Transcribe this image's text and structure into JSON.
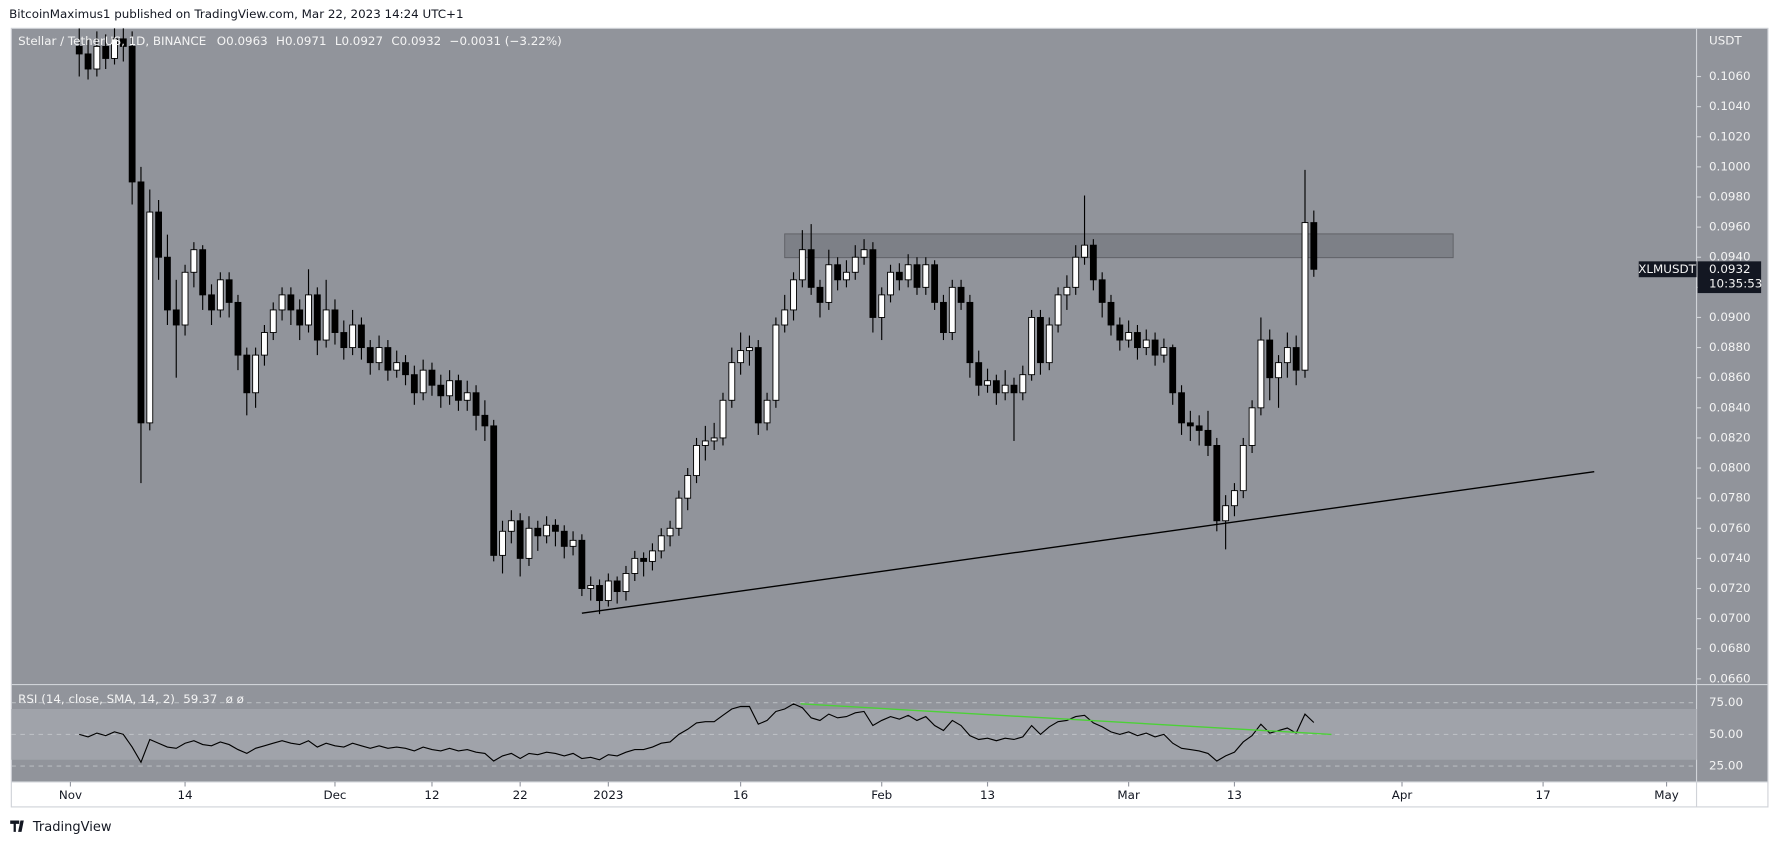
{
  "header": {
    "text": "BitcoinMaximus1 published on TradingView.com, Mar 22, 2023 14:24 UTC+1"
  },
  "footer": {
    "brand": "TradingView"
  },
  "chart_data": {
    "type": "candlestick",
    "symbol_title": "Stellar / TetherUS, 1D, BINANCE",
    "ohlc_labels": [
      "O",
      "H",
      "L",
      "C"
    ],
    "change_label": "−0.0031 (−3.22%)",
    "currency": "USDT",
    "ticker": "XLMUSDT",
    "countdown": "10:35:53",
    "colors": {
      "up": "#ffffff",
      "down": "#000000",
      "background": "#91949b"
    },
    "ohlc": [
      [
        0.108,
        0.1092,
        0.106,
        0.1075
      ],
      [
        0.1075,
        0.1085,
        0.1058,
        0.1065
      ],
      [
        0.1065,
        0.109,
        0.106,
        0.108
      ],
      [
        0.108,
        0.1088,
        0.1065,
        0.1072
      ],
      [
        0.1072,
        0.1095,
        0.1068,
        0.1085
      ],
      [
        0.1085,
        0.11,
        0.107,
        0.108
      ],
      [
        0.108,
        0.109,
        0.0975,
        0.099
      ],
      [
        0.099,
        0.1,
        0.079,
        0.083
      ],
      [
        0.083,
        0.0985,
        0.0825,
        0.097
      ],
      [
        0.097,
        0.0978,
        0.0925,
        0.094
      ],
      [
        0.094,
        0.0955,
        0.0895,
        0.0905
      ],
      [
        0.0905,
        0.0925,
        0.086,
        0.0895
      ],
      [
        0.0895,
        0.0935,
        0.0888,
        0.093
      ],
      [
        0.093,
        0.095,
        0.092,
        0.0945
      ],
      [
        0.0945,
        0.0948,
        0.0905,
        0.0915
      ],
      [
        0.0915,
        0.0922,
        0.0895,
        0.0905
      ],
      [
        0.0905,
        0.093,
        0.09,
        0.0925
      ],
      [
        0.0925,
        0.093,
        0.09,
        0.091
      ],
      [
        0.091,
        0.0915,
        0.0865,
        0.0875
      ],
      [
        0.0875,
        0.088,
        0.0835,
        0.085
      ],
      [
        0.085,
        0.088,
        0.084,
        0.0875
      ],
      [
        0.0875,
        0.0895,
        0.0868,
        0.089
      ],
      [
        0.089,
        0.091,
        0.0885,
        0.0905
      ],
      [
        0.0905,
        0.092,
        0.0898,
        0.0915
      ],
      [
        0.0915,
        0.092,
        0.0895,
        0.0905
      ],
      [
        0.0905,
        0.0912,
        0.0885,
        0.0895
      ],
      [
        0.0895,
        0.0932,
        0.089,
        0.0915
      ],
      [
        0.0915,
        0.092,
        0.0875,
        0.0885
      ],
      [
        0.0885,
        0.0925,
        0.088,
        0.0905
      ],
      [
        0.0905,
        0.0912,
        0.0882,
        0.089
      ],
      [
        0.089,
        0.0898,
        0.0872,
        0.088
      ],
      [
        0.088,
        0.0905,
        0.0875,
        0.0895
      ],
      [
        0.0895,
        0.09,
        0.0872,
        0.088
      ],
      [
        0.088,
        0.0885,
        0.0862,
        0.087
      ],
      [
        0.087,
        0.0888,
        0.0865,
        0.088
      ],
      [
        0.088,
        0.0885,
        0.0858,
        0.0865
      ],
      [
        0.0865,
        0.0878,
        0.086,
        0.087
      ],
      [
        0.087,
        0.0875,
        0.0855,
        0.0862
      ],
      [
        0.0862,
        0.0868,
        0.0842,
        0.085
      ],
      [
        0.085,
        0.0872,
        0.0845,
        0.0865
      ],
      [
        0.0865,
        0.087,
        0.0848,
        0.0855
      ],
      [
        0.0855,
        0.0862,
        0.084,
        0.0848
      ],
      [
        0.0848,
        0.0865,
        0.0842,
        0.0858
      ],
      [
        0.0858,
        0.0862,
        0.0838,
        0.0845
      ],
      [
        0.0845,
        0.0858,
        0.0838,
        0.085
      ],
      [
        0.085,
        0.0855,
        0.0825,
        0.0835
      ],
      [
        0.0835,
        0.0845,
        0.0818,
        0.0828
      ],
      [
        0.0828,
        0.0832,
        0.0738,
        0.0742
      ],
      [
        0.0742,
        0.0765,
        0.073,
        0.0758
      ],
      [
        0.0758,
        0.0772,
        0.075,
        0.0765
      ],
      [
        0.0765,
        0.077,
        0.0728,
        0.074
      ],
      [
        0.074,
        0.0768,
        0.0735,
        0.076
      ],
      [
        0.076,
        0.0765,
        0.0745,
        0.0755
      ],
      [
        0.0755,
        0.0768,
        0.075,
        0.0762
      ],
      [
        0.0762,
        0.0766,
        0.0748,
        0.0758
      ],
      [
        0.0758,
        0.0762,
        0.074,
        0.0748
      ],
      [
        0.0748,
        0.0758,
        0.0742,
        0.0752
      ],
      [
        0.0752,
        0.0756,
        0.0715,
        0.072
      ],
      [
        0.072,
        0.0728,
        0.0712,
        0.0722
      ],
      [
        0.0722,
        0.0726,
        0.0703,
        0.0712
      ],
      [
        0.0712,
        0.073,
        0.0708,
        0.0725
      ],
      [
        0.0725,
        0.0728,
        0.071,
        0.0718
      ],
      [
        0.0718,
        0.0735,
        0.0712,
        0.073
      ],
      [
        0.073,
        0.0745,
        0.0725,
        0.074
      ],
      [
        0.074,
        0.0744,
        0.0728,
        0.0738
      ],
      [
        0.0738,
        0.075,
        0.0732,
        0.0745
      ],
      [
        0.0745,
        0.076,
        0.074,
        0.0755
      ],
      [
        0.0755,
        0.0765,
        0.0748,
        0.076
      ],
      [
        0.076,
        0.0785,
        0.0755,
        0.078
      ],
      [
        0.078,
        0.08,
        0.0772,
        0.0795
      ],
      [
        0.0795,
        0.082,
        0.079,
        0.0815
      ],
      [
        0.0815,
        0.0828,
        0.0805,
        0.0818
      ],
      [
        0.0818,
        0.083,
        0.0812,
        0.082
      ],
      [
        0.082,
        0.085,
        0.0815,
        0.0845
      ],
      [
        0.0845,
        0.088,
        0.084,
        0.087
      ],
      [
        0.087,
        0.089,
        0.0862,
        0.0878
      ],
      [
        0.0878,
        0.0888,
        0.0868,
        0.088
      ],
      [
        0.088,
        0.0885,
        0.0822,
        0.083
      ],
      [
        0.083,
        0.085,
        0.0825,
        0.0845
      ],
      [
        0.0845,
        0.09,
        0.084,
        0.0895
      ],
      [
        0.0895,
        0.0915,
        0.089,
        0.0905
      ],
      [
        0.0905,
        0.093,
        0.0898,
        0.0925
      ],
      [
        0.0925,
        0.0958,
        0.092,
        0.0945
      ],
      [
        0.0945,
        0.0962,
        0.0915,
        0.092
      ],
      [
        0.092,
        0.0925,
        0.09,
        0.091
      ],
      [
        0.091,
        0.0945,
        0.0905,
        0.0935
      ],
      [
        0.0935,
        0.094,
        0.0918,
        0.0925
      ],
      [
        0.0925,
        0.0938,
        0.092,
        0.093
      ],
      [
        0.093,
        0.0948,
        0.0925,
        0.094
      ],
      [
        0.094,
        0.0952,
        0.0935,
        0.0945
      ],
      [
        0.0945,
        0.095,
        0.089,
        0.09
      ],
      [
        0.09,
        0.092,
        0.0885,
        0.0915
      ],
      [
        0.0915,
        0.0935,
        0.091,
        0.093
      ],
      [
        0.093,
        0.0936,
        0.0918,
        0.0925
      ],
      [
        0.0925,
        0.0942,
        0.092,
        0.0935
      ],
      [
        0.0935,
        0.094,
        0.0915,
        0.092
      ],
      [
        0.092,
        0.094,
        0.0915,
        0.0935
      ],
      [
        0.0935,
        0.0938,
        0.0905,
        0.091
      ],
      [
        0.091,
        0.0915,
        0.0885,
        0.089
      ],
      [
        0.089,
        0.0925,
        0.0885,
        0.092
      ],
      [
        0.092,
        0.0925,
        0.0905,
        0.091
      ],
      [
        0.091,
        0.0915,
        0.086,
        0.087
      ],
      [
        0.087,
        0.0878,
        0.0848,
        0.0855
      ],
      [
        0.0855,
        0.0866,
        0.085,
        0.0858
      ],
      [
        0.0858,
        0.0862,
        0.0842,
        0.085
      ],
      [
        0.085,
        0.0865,
        0.0845,
        0.0855
      ],
      [
        0.0855,
        0.086,
        0.0818,
        0.085
      ],
      [
        0.085,
        0.0868,
        0.0845,
        0.0862
      ],
      [
        0.0862,
        0.0905,
        0.0858,
        0.09
      ],
      [
        0.09,
        0.0905,
        0.0862,
        0.087
      ],
      [
        0.087,
        0.09,
        0.0865,
        0.0895
      ],
      [
        0.0895,
        0.092,
        0.089,
        0.0915
      ],
      [
        0.0915,
        0.0928,
        0.0905,
        0.092
      ],
      [
        0.092,
        0.0948,
        0.0915,
        0.094
      ],
      [
        0.094,
        0.0981,
        0.0935,
        0.0948
      ],
      [
        0.0948,
        0.0952,
        0.0918,
        0.0925
      ],
      [
        0.0925,
        0.093,
        0.09,
        0.091
      ],
      [
        0.091,
        0.0915,
        0.0888,
        0.0895
      ],
      [
        0.0895,
        0.09,
        0.0878,
        0.0885
      ],
      [
        0.0885,
        0.0898,
        0.088,
        0.089
      ],
      [
        0.089,
        0.0895,
        0.0872,
        0.088
      ],
      [
        0.088,
        0.0892,
        0.0875,
        0.0885
      ],
      [
        0.0885,
        0.089,
        0.0868,
        0.0875
      ],
      [
        0.0875,
        0.0886,
        0.087,
        0.088
      ],
      [
        0.088,
        0.0882,
        0.0842,
        0.085
      ],
      [
        0.085,
        0.0855,
        0.0822,
        0.083
      ],
      [
        0.083,
        0.0838,
        0.0818,
        0.0828
      ],
      [
        0.0828,
        0.0835,
        0.0815,
        0.0825
      ],
      [
        0.0825,
        0.0838,
        0.0808,
        0.0815
      ],
      [
        0.0815,
        0.082,
        0.0758,
        0.0765
      ],
      [
        0.0765,
        0.0782,
        0.0746,
        0.0775
      ],
      [
        0.0775,
        0.079,
        0.0768,
        0.0785
      ],
      [
        0.0785,
        0.082,
        0.078,
        0.0815
      ],
      [
        0.0815,
        0.0845,
        0.081,
        0.084
      ],
      [
        0.084,
        0.09,
        0.0835,
        0.0885
      ],
      [
        0.0885,
        0.0892,
        0.0845,
        0.086
      ],
      [
        0.086,
        0.0875,
        0.084,
        0.087
      ],
      [
        0.087,
        0.089,
        0.086,
        0.088
      ],
      [
        0.088,
        0.0888,
        0.0855,
        0.0865
      ],
      [
        0.0865,
        0.0998,
        0.086,
        0.0963
      ],
      [
        0.0963,
        0.0971,
        0.0927,
        0.0932
      ]
    ],
    "xlim": [
      -7.7,
      183.4
    ],
    "xticks": [
      {
        "value": -1,
        "label": "Nov"
      },
      {
        "value": 12,
        "label": "14"
      },
      {
        "value": 29,
        "label": "Dec"
      },
      {
        "value": 40,
        "label": "12"
      },
      {
        "value": 50,
        "label": "22"
      },
      {
        "value": 60,
        "label": "2023"
      },
      {
        "value": 75,
        "label": "16"
      },
      {
        "value": 91,
        "label": "Feb"
      },
      {
        "value": 103,
        "label": "13"
      },
      {
        "value": 119,
        "label": "Mar"
      },
      {
        "value": 131,
        "label": "13"
      },
      {
        "value": 150,
        "label": "Apr"
      },
      {
        "value": 166,
        "label": "17"
      },
      {
        "value": 180,
        "label": "May"
      }
    ],
    "ylim": [
      0.0657,
      0.1092
    ],
    "yticks": [
      {
        "value": 0.066,
        "label": "0.0660"
      },
      {
        "value": 0.068,
        "label": "0.0680"
      },
      {
        "value": 0.07,
        "label": "0.0700"
      },
      {
        "value": 0.072,
        "label": "0.0720"
      },
      {
        "value": 0.074,
        "label": "0.0740"
      },
      {
        "value": 0.076,
        "label": "0.0760"
      },
      {
        "value": 0.078,
        "label": "0.0780"
      },
      {
        "value": 0.08,
        "label": "0.0800"
      },
      {
        "value": 0.082,
        "label": "0.0820"
      },
      {
        "value": 0.084,
        "label": "0.0840"
      },
      {
        "value": 0.086,
        "label": "0.0860"
      },
      {
        "value": 0.088,
        "label": "0.0880"
      },
      {
        "value": 0.09,
        "label": "0.0900"
      },
      {
        "value": 0.092,
        "label": "0.0920"
      },
      {
        "value": 0.094,
        "label": "0.0940"
      },
      {
        "value": 0.096,
        "label": "0.0960"
      },
      {
        "value": 0.098,
        "label": "0.0980"
      },
      {
        "value": 0.1,
        "label": "0.1000"
      },
      {
        "value": 0.102,
        "label": "0.1020"
      },
      {
        "value": 0.104,
        "label": "0.1040"
      },
      {
        "value": 0.106,
        "label": "0.1060"
      }
    ],
    "zone": {
      "x": [
        80,
        155.8
      ],
      "y": [
        0.09397,
        0.09555
      ],
      "color": "#6e7076"
    },
    "trendline": {
      "x": [
        57,
        171.8
      ],
      "y": [
        0.07036,
        0.07976
      ],
      "color": "#000000"
    },
    "rsi": {
      "title": "RSI (14, close, SMA, 14, 2)",
      "extra": "ø  ø",
      "color": "#000000",
      "values": [
        50,
        48,
        51,
        49,
        52,
        50,
        40,
        28,
        46,
        43,
        40,
        39,
        43,
        45,
        42,
        41,
        44,
        42,
        38,
        35,
        39,
        41,
        43,
        45,
        43,
        42,
        45,
        40,
        43,
        41,
        40,
        43,
        41,
        39,
        41,
        39,
        40,
        39,
        37,
        40,
        38,
        37,
        39,
        37,
        38,
        36,
        35,
        29,
        33,
        35,
        31,
        35,
        34,
        36,
        35,
        33,
        35,
        31,
        32,
        30,
        34,
        33,
        36,
        38,
        38,
        40,
        43,
        44,
        50,
        54,
        59,
        60,
        60,
        65,
        70,
        72,
        72,
        58,
        61,
        68,
        70,
        74,
        71,
        63,
        61,
        66,
        63,
        64,
        67,
        68,
        57,
        61,
        64,
        62,
        65,
        61,
        64,
        57,
        53,
        61,
        57,
        49,
        46,
        47,
        45,
        47,
        46,
        48,
        57,
        50,
        56,
        60,
        61,
        64,
        65,
        59,
        56,
        52,
        50,
        52,
        49,
        51,
        48,
        50,
        43,
        39,
        38,
        37,
        35,
        29,
        33,
        36,
        44,
        49,
        58,
        51,
        53,
        55,
        51,
        66,
        59.37
      ],
      "ylim": [
        12.5,
        88.4
      ],
      "yticks": [
        {
          "value": 75,
          "label": "75.00"
        },
        {
          "value": 50,
          "label": "50.00"
        },
        {
          "value": 25,
          "label": "25.00"
        }
      ],
      "bands": [
        30,
        70
      ],
      "divergence": {
        "x": [
          81.8,
          142
        ],
        "y": [
          74.1,
          50
        ],
        "color": "#4cd137"
      }
    }
  }
}
